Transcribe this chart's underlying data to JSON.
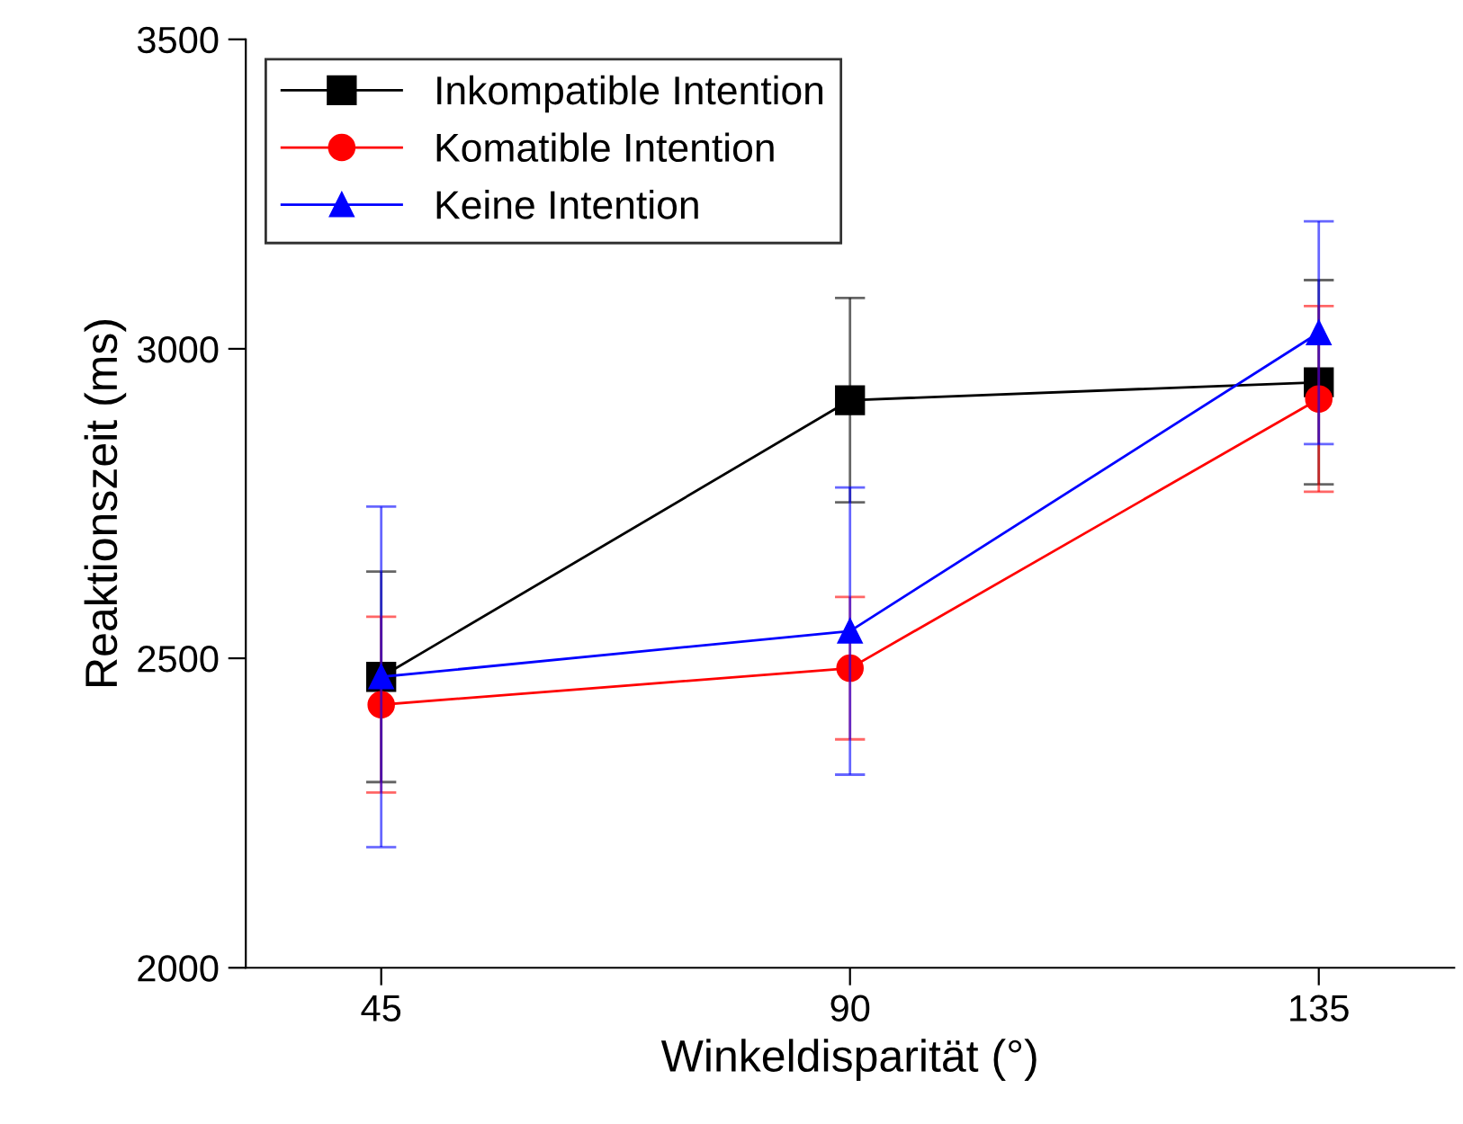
{
  "chart_data": {
    "type": "line",
    "xlabel": "Winkeldisparität (°)",
    "ylabel": "Reaktionszeit (ms)",
    "x": [
      45,
      90,
      135
    ],
    "xlim": [
      32,
      148
    ],
    "xticks": [
      45,
      90,
      135
    ],
    "ylim": [
      2000,
      3500
    ],
    "yticks": [
      2000,
      2500,
      3000,
      3500
    ],
    "grid": false,
    "legend": "top left",
    "line_style": "solid",
    "series": [
      {
        "name": "Inkompatible Intention",
        "color": "#000000",
        "marker": "square",
        "values": [
          2470,
          2917,
          2946
        ],
        "errors": [
          170,
          165,
          165
        ]
      },
      {
        "name": "Komatible Intention",
        "color": "#ff0000",
        "marker": "circle",
        "values": [
          2425,
          2484,
          2919
        ],
        "errors": [
          142,
          115,
          150
        ]
      },
      {
        "name": "Keine Intention",
        "color": "#0000ff",
        "marker": "triangle",
        "values": [
          2470,
          2544,
          3026
        ],
        "errors": [
          275,
          232,
          180
        ]
      }
    ]
  }
}
